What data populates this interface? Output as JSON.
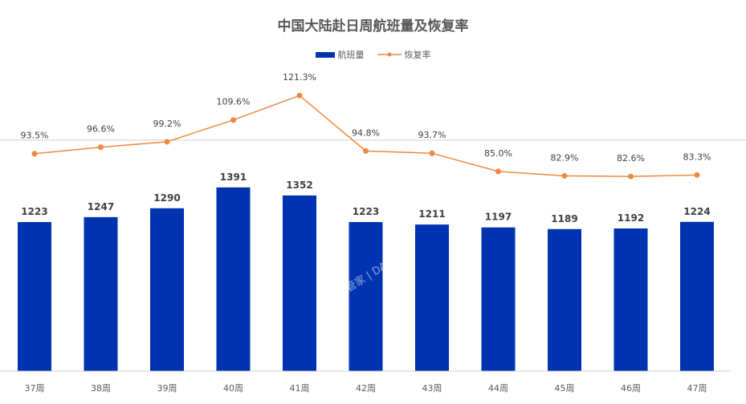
{
  "chart_data": {
    "type": "bar+line",
    "title": "中国大陆赴日周航班量及恢复率",
    "categories": [
      "37周",
      "38周",
      "39周",
      "40周",
      "41周",
      "42周",
      "43周",
      "44周",
      "45周",
      "46周",
      "47周"
    ],
    "series": [
      {
        "name": "航班量",
        "type": "bar",
        "color": "#0033b0",
        "values": [
          1223,
          1247,
          1290,
          1391,
          1352,
          1223,
          1211,
          1197,
          1189,
          1192,
          1224
        ],
        "labels": [
          "1223",
          "1247",
          "1290",
          "1391",
          "1352",
          "1223",
          "1211",
          "1197",
          "1189",
          "1192",
          "1224"
        ]
      },
      {
        "name": "恢复率",
        "type": "line",
        "color": "#ed8a3f",
        "values": [
          93.5,
          96.6,
          99.2,
          109.6,
          121.3,
          94.8,
          93.7,
          85.0,
          82.9,
          82.6,
          83.3
        ],
        "labels": [
          "93.5%",
          "96.6%",
          "99.2%",
          "109.6%",
          "121.3%",
          "94.8%",
          "93.7%",
          "85.0%",
          "82.9%",
          "82.6%",
          "83.3%"
        ]
      }
    ],
    "bar_ylim": [
      500,
      2300
    ],
    "line_ylim": [
      0,
      167
    ],
    "reference_line": 100,
    "legend_position": "top-center",
    "watermark": "航班管家 | DAST"
  }
}
